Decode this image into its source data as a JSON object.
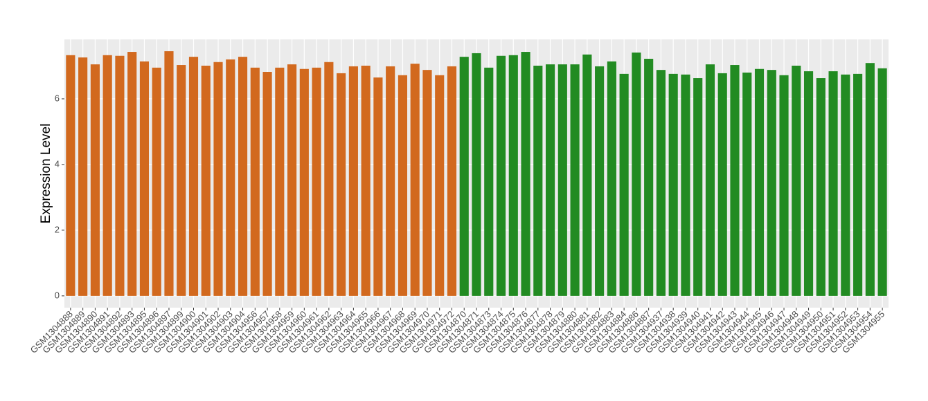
{
  "chart_data": {
    "type": "bar",
    "y_label": "Expression Level",
    "categories": [
      "GSM1304888",
      "GSM1304889",
      "GSM1304890",
      "GSM1304891",
      "GSM1304892",
      "GSM1304893",
      "GSM1304895",
      "GSM1304896",
      "GSM1304897",
      "GSM1304899",
      "GSM1304900",
      "GSM1304901",
      "GSM1304902",
      "GSM1304903",
      "GSM1304904",
      "GSM1304956",
      "GSM1304957",
      "GSM1304958",
      "GSM1304959",
      "GSM1304960",
      "GSM1304961",
      "GSM1304962",
      "GSM1304963",
      "GSM1304964",
      "GSM1304965",
      "GSM1304966",
      "GSM1304967",
      "GSM1304968",
      "GSM1304969",
      "GSM1304970",
      "GSM1304971",
      "GSM1304972",
      "GSM1304870",
      "GSM1304871",
      "GSM1304873",
      "GSM1304874",
      "GSM1304875",
      "GSM1304876",
      "GSM1304877",
      "GSM1304878",
      "GSM1304879",
      "GSM1304880",
      "GSM1304881",
      "GSM1304882",
      "GSM1304883",
      "GSM1304884",
      "GSM1304886",
      "GSM1304887",
      "GSM1304937",
      "GSM1304938",
      "GSM1304939",
      "GSM1304940",
      "GSM1304941",
      "GSM1304942",
      "GSM1304943",
      "GSM1304944",
      "GSM1304945",
      "GSM1304946",
      "GSM1304947",
      "GSM1304948",
      "GSM1304949",
      "GSM1304950",
      "GSM1304951",
      "GSM1304952",
      "GSM1304953",
      "GSM1304954",
      "GSM1304955"
    ],
    "values": [
      7.33,
      7.26,
      7.05,
      7.33,
      7.31,
      7.43,
      7.14,
      6.95,
      7.45,
      7.03,
      7.28,
      7.01,
      7.12,
      7.2,
      7.28,
      6.95,
      6.82,
      6.95,
      7.05,
      6.91,
      6.95,
      7.12,
      6.78,
      6.99,
      7.01,
      6.65,
      6.99,
      6.72,
      7.07,
      6.88,
      6.72,
      6.99,
      7.28,
      7.39,
      6.95,
      7.31,
      7.33,
      7.43,
      7.01,
      7.05,
      7.05,
      7.05,
      7.35,
      6.99,
      7.14,
      6.76,
      7.41,
      7.22,
      6.88,
      6.76,
      6.74,
      6.63,
      7.05,
      6.78,
      7.03,
      6.8,
      6.91,
      6.88,
      6.72,
      7.01,
      6.84,
      6.63,
      6.84,
      6.74,
      6.76,
      7.09,
      6.93
    ],
    "colors": [
      "#d2691e",
      "#d2691e",
      "#d2691e",
      "#d2691e",
      "#d2691e",
      "#d2691e",
      "#d2691e",
      "#d2691e",
      "#d2691e",
      "#d2691e",
      "#d2691e",
      "#d2691e",
      "#d2691e",
      "#d2691e",
      "#d2691e",
      "#d2691e",
      "#d2691e",
      "#d2691e",
      "#d2691e",
      "#d2691e",
      "#d2691e",
      "#d2691e",
      "#d2691e",
      "#d2691e",
      "#d2691e",
      "#d2691e",
      "#d2691e",
      "#d2691e",
      "#d2691e",
      "#d2691e",
      "#d2691e",
      "#d2691e",
      "#228b22",
      "#228b22",
      "#228b22",
      "#228b22",
      "#228b22",
      "#228b22",
      "#228b22",
      "#228b22",
      "#228b22",
      "#228b22",
      "#228b22",
      "#228b22",
      "#228b22",
      "#228b22",
      "#228b22",
      "#228b22",
      "#228b22",
      "#228b22",
      "#228b22",
      "#228b22",
      "#228b22",
      "#228b22",
      "#228b22",
      "#228b22",
      "#228b22",
      "#228b22",
      "#228b22",
      "#228b22",
      "#228b22",
      "#228b22",
      "#228b22",
      "#228b22",
      "#228b22",
      "#228b22",
      "#228b22"
    ],
    "ylim": [
      -0.36,
      7.81
    ],
    "yticks": [
      0,
      2,
      4,
      6
    ],
    "grid": true
  }
}
